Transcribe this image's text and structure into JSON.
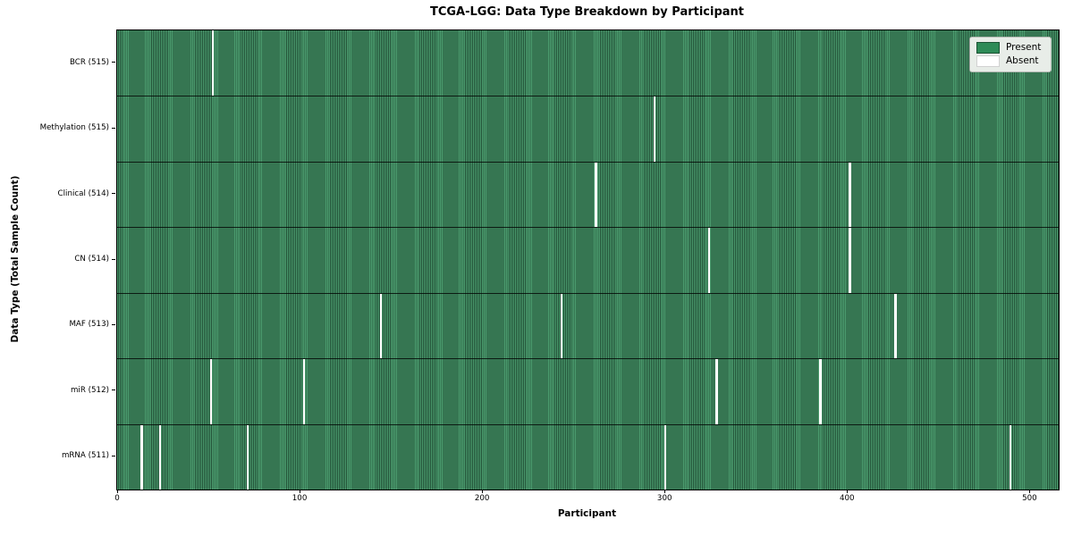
{
  "colors": {
    "present": "#2e8b57",
    "present_stripe_light": "#4a9a6d",
    "present_stripe_dark": "#235238",
    "absent": "#ffffff",
    "legend_bg": "#e8ede8"
  },
  "chart_data": {
    "type": "heatmap",
    "title": "TCGA-LGG: Data Type Breakdown by Participant",
    "xlabel": "Participant",
    "ylabel": "Data Type (Total Sample Count)",
    "legend_position": "upper right",
    "grid": false,
    "n_participants": 516,
    "xlim": [
      -0.5,
      515.5
    ],
    "x_ticks": [
      0,
      100,
      200,
      300,
      400,
      500
    ],
    "legend": [
      {
        "label": "Present",
        "color": "#2e8b57"
      },
      {
        "label": "Absent",
        "color": "#ffffff"
      }
    ],
    "rows": [
      {
        "label": "BCR (515)",
        "data_type": "BCR",
        "present_count": 515,
        "absent_participants": [
          52
        ]
      },
      {
        "label": "Methylation (515)",
        "data_type": "Methylation",
        "present_count": 515,
        "absent_participants": [
          294
        ]
      },
      {
        "label": "Clinical (514)",
        "data_type": "Clinical",
        "present_count": 514,
        "absent_participants": [
          262,
          401
        ]
      },
      {
        "label": "CN (514)",
        "data_type": "CN",
        "present_count": 514,
        "absent_participants": [
          324,
          401
        ]
      },
      {
        "label": "MAF (513)",
        "data_type": "MAF",
        "present_count": 513,
        "absent_participants": [
          144,
          243,
          426
        ]
      },
      {
        "label": "miR (512)",
        "data_type": "miR",
        "present_count": 512,
        "absent_participants": [
          51,
          102,
          328,
          385
        ]
      },
      {
        "label": "mRNA (511)",
        "data_type": "mRNA",
        "present_count": 511,
        "absent_participants": [
          13,
          23,
          71,
          300,
          489
        ]
      }
    ]
  }
}
